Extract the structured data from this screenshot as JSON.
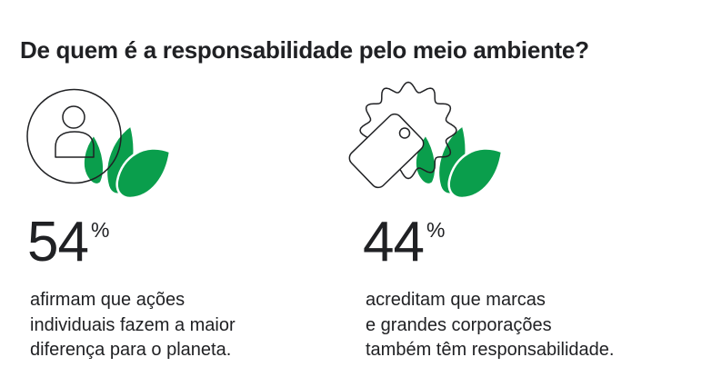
{
  "page": {
    "background": "#ffffff",
    "title": "De quem é a responsabilidade pelo meio ambiente?"
  },
  "colors": {
    "text": "#202124",
    "leaf_green": "#0a9e4c",
    "outline": "#202124"
  },
  "stats": [
    {
      "icon": "person-with-leaves",
      "value": "54",
      "unit": "%",
      "description": "afirmam que ações\nindividuais fazem a maior\ndiferença para o planeta."
    },
    {
      "icon": "price-tag-with-leaves",
      "value": "44",
      "unit": "%",
      "description": "acreditam que marcas\ne grandes corporações\ntambém têm responsabilidade."
    }
  ],
  "chart_data": {
    "type": "table",
    "title": "De quem é a responsabilidade pelo meio ambiente?",
    "categories": [
      "Ações individuais fazem a maior diferença para o planeta",
      "Marcas e grandes corporações também têm responsabilidade"
    ],
    "values": [
      54,
      44
    ],
    "unit": "%",
    "legend_position": "none",
    "grid": false
  }
}
